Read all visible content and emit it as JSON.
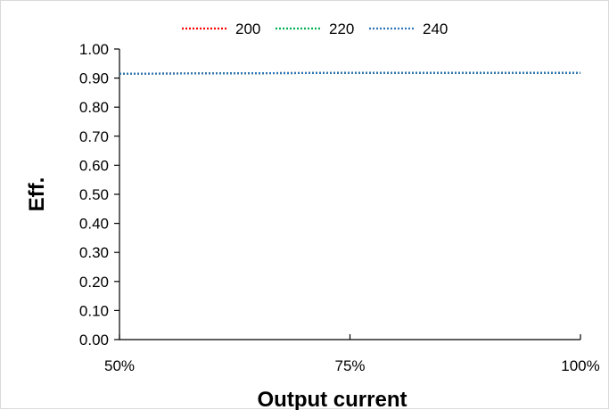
{
  "chart_data": {
    "type": "line",
    "x": [
      "50%",
      "75%",
      "100%"
    ],
    "series": [
      {
        "name": "200",
        "values": [
          0.915,
          0.918,
          0.918
        ],
        "color": "#ff0000"
      },
      {
        "name": "220",
        "values": [
          0.915,
          0.918,
          0.918
        ],
        "color": "#00b050"
      },
      {
        "name": "240",
        "values": [
          0.915,
          0.918,
          0.918
        ],
        "color": "#2e75b6"
      }
    ],
    "xlabel": "Output current",
    "ylabel": "Eff.",
    "ylim": [
      0,
      1
    ],
    "yticks": [
      "0.00",
      "0.10",
      "0.20",
      "0.30",
      "0.40",
      "0.50",
      "0.60",
      "0.70",
      "0.80",
      "0.90",
      "1.00"
    ],
    "grid": false,
    "legend": "top",
    "line_style": "dotted"
  }
}
